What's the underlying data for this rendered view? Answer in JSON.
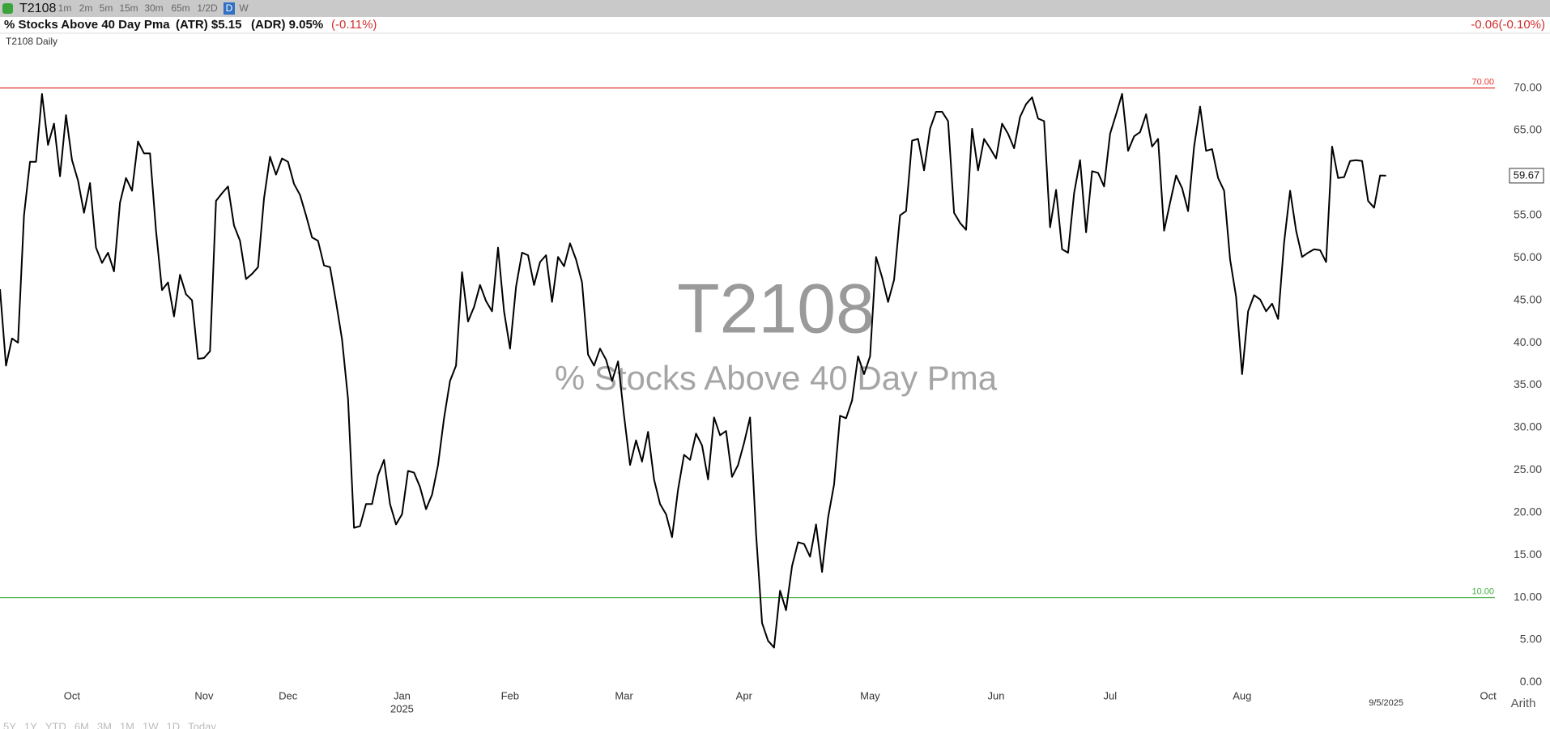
{
  "toolbar": {
    "symbol": "T2108",
    "intervals": [
      "1m",
      "2m",
      "5m",
      "15m",
      "30m",
      "65m",
      "1/2D",
      "D",
      "W"
    ],
    "active_interval": "D"
  },
  "header": {
    "name": "% Stocks Above 40 Day Pma",
    "atr": "(ATR) $5.15",
    "adr": "(ADR) 9.05%",
    "change": "(-0.11%)",
    "right_change": "-0.06(-0.10%)"
  },
  "chart_data": {
    "type": "line",
    "panel_label": "T2108 Daily",
    "watermark_symbol": "T2108",
    "watermark_name": "% Stocks Above 40 Day Pma",
    "color": "#000000",
    "grid": false,
    "categories": [
      null,
      null,
      null,
      null,
      null,
      null,
      null,
      null,
      null,
      null,
      null,
      null,
      "Oct",
      null,
      null,
      null,
      null,
      null,
      null,
      null,
      null,
      null,
      null,
      null,
      null,
      null,
      null,
      null,
      null,
      null,
      null,
      null,
      null,
      null,
      "Nov",
      null,
      null,
      null,
      null,
      null,
      null,
      null,
      null,
      null,
      null,
      null,
      null,
      null,
      "Dec",
      null,
      null,
      null,
      null,
      null,
      null,
      null,
      null,
      null,
      null,
      null,
      null,
      null,
      null,
      null,
      null,
      null,
      null,
      "Jan",
      null,
      null,
      null,
      null,
      null,
      null,
      null,
      null,
      null,
      null,
      null,
      null,
      null,
      null,
      null,
      null,
      null,
      "Feb",
      null,
      null,
      null,
      null,
      null,
      null,
      null,
      null,
      null,
      null,
      null,
      null,
      null,
      null,
      null,
      null,
      null,
      null,
      "Mar",
      null,
      null,
      null,
      null,
      null,
      null,
      null,
      null,
      null,
      null,
      null,
      null,
      null,
      null,
      null,
      null,
      null,
      null,
      null,
      "Apr",
      null,
      null,
      null,
      null,
      null,
      null,
      null,
      null,
      null,
      null,
      null,
      null,
      null,
      null,
      null,
      null,
      null,
      null,
      null,
      null,
      "May",
      null,
      null,
      null,
      null,
      null,
      null,
      null,
      null,
      null,
      null,
      null,
      null,
      null,
      null,
      null,
      null,
      null,
      null,
      null,
      null,
      "Jun",
      null,
      null,
      null,
      null,
      null,
      null,
      null,
      null,
      null,
      null,
      null,
      null,
      null,
      null,
      null,
      null,
      null,
      null,
      "Jul",
      null,
      null,
      null,
      null,
      null,
      null,
      null,
      null,
      null,
      null,
      null,
      null,
      null,
      null,
      null,
      null,
      null,
      null,
      null,
      null,
      null,
      "Aug",
      null,
      null,
      null,
      null,
      null,
      null,
      null,
      null,
      null,
      null,
      null,
      null,
      null,
      null,
      null,
      null,
      null,
      null,
      null,
      null,
      null,
      null,
      null,
      null,
      null,
      null,
      null,
      null,
      null,
      null,
      null,
      null,
      null,
      null,
      null,
      null,
      null,
      null,
      null,
      null,
      "Oct",
      null,
      null,
      null
    ],
    "values": [
      46.3,
      37.3,
      40.5,
      40,
      55,
      61.3,
      61.3,
      69.3,
      63.3,
      65.8,
      59.6,
      66.8,
      61.5,
      59.1,
      55.3,
      58.8,
      51.2,
      49.4,
      50.6,
      48.4,
      56.5,
      59.4,
      57.9,
      63.7,
      62.3,
      62.3,
      53.2,
      46.2,
      47.1,
      43.1,
      48,
      45.7,
      45,
      38.1,
      38.2,
      39,
      56.7,
      57.6,
      58.4,
      53.8,
      52,
      47.5,
      48.1,
      48.9,
      57,
      61.9,
      59.8,
      61.7,
      61.3,
      58.7,
      57.4,
      55,
      52.4,
      52,
      49.1,
      48.9,
      44.8,
      40.4,
      33.4,
      18.2,
      18.4,
      21,
      21,
      24.4,
      26.2,
      21,
      18.6,
      19.8,
      24.9,
      24.7,
      23,
      20.4,
      22.1,
      25.6,
      31.1,
      35.5,
      37.3,
      48.3,
      42.5,
      44.2,
      46.8,
      44.9,
      43.7,
      51.2,
      43.7,
      39.3,
      46.6,
      50.6,
      50.3,
      46.8,
      49.5,
      50.3,
      44.8,
      50.1,
      49,
      51.7,
      49.8,
      47.1,
      38.6,
      37.3,
      39.3,
      38,
      35.5,
      37.8,
      31.4,
      25.6,
      28.5,
      26,
      29.5,
      23.9,
      21,
      19.8,
      17.1,
      22.7,
      26.8,
      26.2,
      29.3,
      27.9,
      23.9,
      31.2,
      29.1,
      29.6,
      24.2,
      25.6,
      28.2,
      31.2,
      17.5,
      7,
      4.9,
      4.1,
      10.8,
      8.5,
      13.7,
      16.5,
      16.3,
      14.8,
      18.6,
      13,
      19.4,
      23.3,
      31.4,
      31.1,
      33.2,
      38.4,
      36.3,
      38.4,
      50.1,
      47.7,
      44.8,
      47.4,
      55,
      55.5,
      63.8,
      64,
      60.3,
      65.2,
      67.2,
      67.2,
      66.1,
      55.3,
      54.1,
      53.3,
      65.2,
      60.3,
      64,
      62.9,
      61.7,
      65.8,
      64.6,
      62.9,
      66.6,
      68.1,
      68.9,
      66.4,
      66.1,
      53.6,
      58,
      51,
      50.6,
      57.6,
      61.5,
      53,
      60.2,
      60,
      58.4,
      64.6,
      66.9,
      69.3,
      62.6,
      64.3,
      64.8,
      66.9,
      63.1,
      64,
      53.2,
      56.5,
      59.7,
      58.2,
      55.5,
      63.1,
      67.8,
      62.6,
      62.8,
      59.4,
      57.9,
      49.8,
      45.4,
      36.3,
      43.7,
      45.6,
      45.1,
      43.7,
      44.6,
      42.8,
      51.8,
      57.9,
      53.2,
      50.1,
      50.6,
      51,
      50.9,
      49.5,
      63.1,
      59.4,
      59.5,
      61.4,
      61.5,
      61.4,
      56.7,
      55.9,
      59.7,
      59.67,
      null,
      null,
      null,
      null,
      null,
      null,
      null,
      null,
      null,
      null,
      null,
      null,
      null,
      null,
      null,
      null,
      null,
      null,
      null,
      null
    ],
    "year_label": "2025",
    "date_label": "9/5/2025",
    "scale_mode": "Arith",
    "ylim": [
      -1.2,
      75.4
    ],
    "yticks": [
      {
        "value": 0,
        "label": "0.00"
      },
      {
        "value": 5,
        "label": "5.00"
      },
      {
        "value": 10,
        "label": "10.00"
      },
      {
        "value": 15,
        "label": "15.00"
      },
      {
        "value": 20,
        "label": "20.00"
      },
      {
        "value": 25,
        "label": "25.00"
      },
      {
        "value": 30,
        "label": "30.00"
      },
      {
        "value": 35,
        "label": "35.00"
      },
      {
        "value": 40,
        "label": "40.00"
      },
      {
        "value": 45,
        "label": "45.00"
      },
      {
        "value": 50,
        "label": "50.00"
      },
      {
        "value": 55,
        "label": "55.00"
      },
      {
        "value": 60,
        "label": "60.00"
      },
      {
        "value": 65,
        "label": "65.00"
      },
      {
        "value": 70,
        "label": "70.00"
      }
    ],
    "ref_lines": [
      {
        "value": 70,
        "label": "70.00",
        "color": "#e53935"
      },
      {
        "value": 10,
        "label": "10.00",
        "color": "#43b043"
      }
    ],
    "ranges": [
      "5Y",
      "1Y",
      "YTD",
      "6M",
      "3M",
      "1M",
      "1W",
      "1D",
      "Today"
    ]
  }
}
